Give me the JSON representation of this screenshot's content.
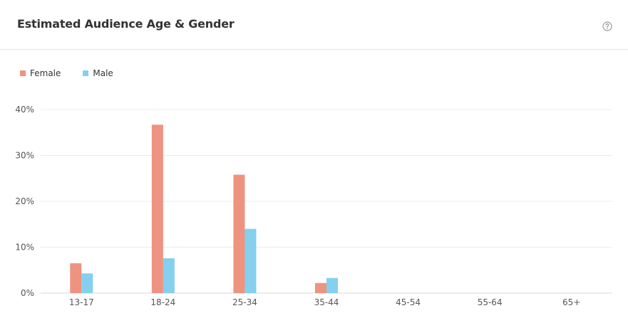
{
  "header": {
    "title": "Estimated Audience Age & Gender",
    "help_icon": "question-circle-icon"
  },
  "colors": {
    "female": "#ee9380",
    "male": "#84d0ee",
    "grid": "#ececec",
    "axis": "#d9d9d9"
  },
  "chart_data": {
    "type": "bar",
    "title": "Estimated Audience Age & Gender",
    "categories": [
      "13-17",
      "18-24",
      "25-34",
      "35-44",
      "45-54",
      "55-64",
      "65+"
    ],
    "series": [
      {
        "name": "Female",
        "values": [
          6.5,
          36.7,
          25.8,
          2.2,
          0,
          0,
          0
        ]
      },
      {
        "name": "Male",
        "values": [
          4.3,
          7.6,
          14.0,
          3.3,
          0,
          0,
          0
        ]
      }
    ],
    "ylim": [
      0,
      40
    ],
    "yticks": [
      "0%",
      "10%",
      "20%",
      "30%",
      "40%"
    ],
    "legend_position": "top-left",
    "grid": true,
    "xlabel": "",
    "ylabel": ""
  }
}
